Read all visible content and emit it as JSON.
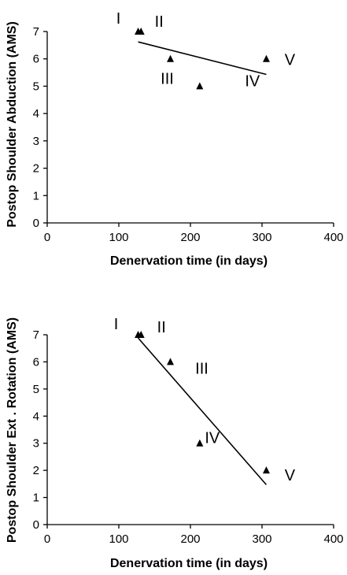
{
  "chart_data": [
    {
      "type": "scatter",
      "title": "",
      "xlabel": "Denervation time (in days)",
      "ylabel": "Postop Shoulder Abduction (AMS)",
      "xlim": [
        0,
        400
      ],
      "ylim": [
        0,
        7
      ],
      "x_ticks": [
        "0",
        "100",
        "200",
        "300",
        "400"
      ],
      "y_ticks": [
        "0",
        "1",
        "2",
        "3",
        "4",
        "5",
        "6",
        "7"
      ],
      "grid": false,
      "legend": "none",
      "marker": "triangle",
      "marker_color": "#000000",
      "points": [
        {
          "label": "I",
          "x": 127,
          "y": 7
        },
        {
          "label": "II",
          "x": 131,
          "y": 7
        },
        {
          "label": "III",
          "x": 172,
          "y": 6
        },
        {
          "label": "IV",
          "x": 213,
          "y": 5
        },
        {
          "label": "V",
          "x": 306,
          "y": 6
        }
      ],
      "trendline": {
        "x": [
          127,
          306
        ],
        "y": [
          6.62,
          5.43
        ]
      }
    },
    {
      "type": "scatter",
      "title": "",
      "xlabel": "Denervation time (in days)",
      "ylabel": "Postop Shoulder Ext . Rotation (AMS)",
      "xlim": [
        0,
        400
      ],
      "ylim": [
        0,
        7
      ],
      "x_ticks": [
        "0",
        "100",
        "200",
        "300",
        "400"
      ],
      "y_ticks": [
        "0",
        "1",
        "2",
        "3",
        "4",
        "5",
        "6",
        "7"
      ],
      "grid": false,
      "legend": "none",
      "marker": "triangle",
      "marker_color": "#000000",
      "points": [
        {
          "label": "I",
          "x": 127,
          "y": 7
        },
        {
          "label": "II",
          "x": 131,
          "y": 7
        },
        {
          "label": "III",
          "x": 172,
          "y": 6
        },
        {
          "label": "IV",
          "x": 213,
          "y": 3
        },
        {
          "label": "V",
          "x": 306,
          "y": 2
        }
      ],
      "trendline": {
        "x": [
          127,
          306
        ],
        "y": [
          6.88,
          1.47
        ]
      }
    }
  ]
}
